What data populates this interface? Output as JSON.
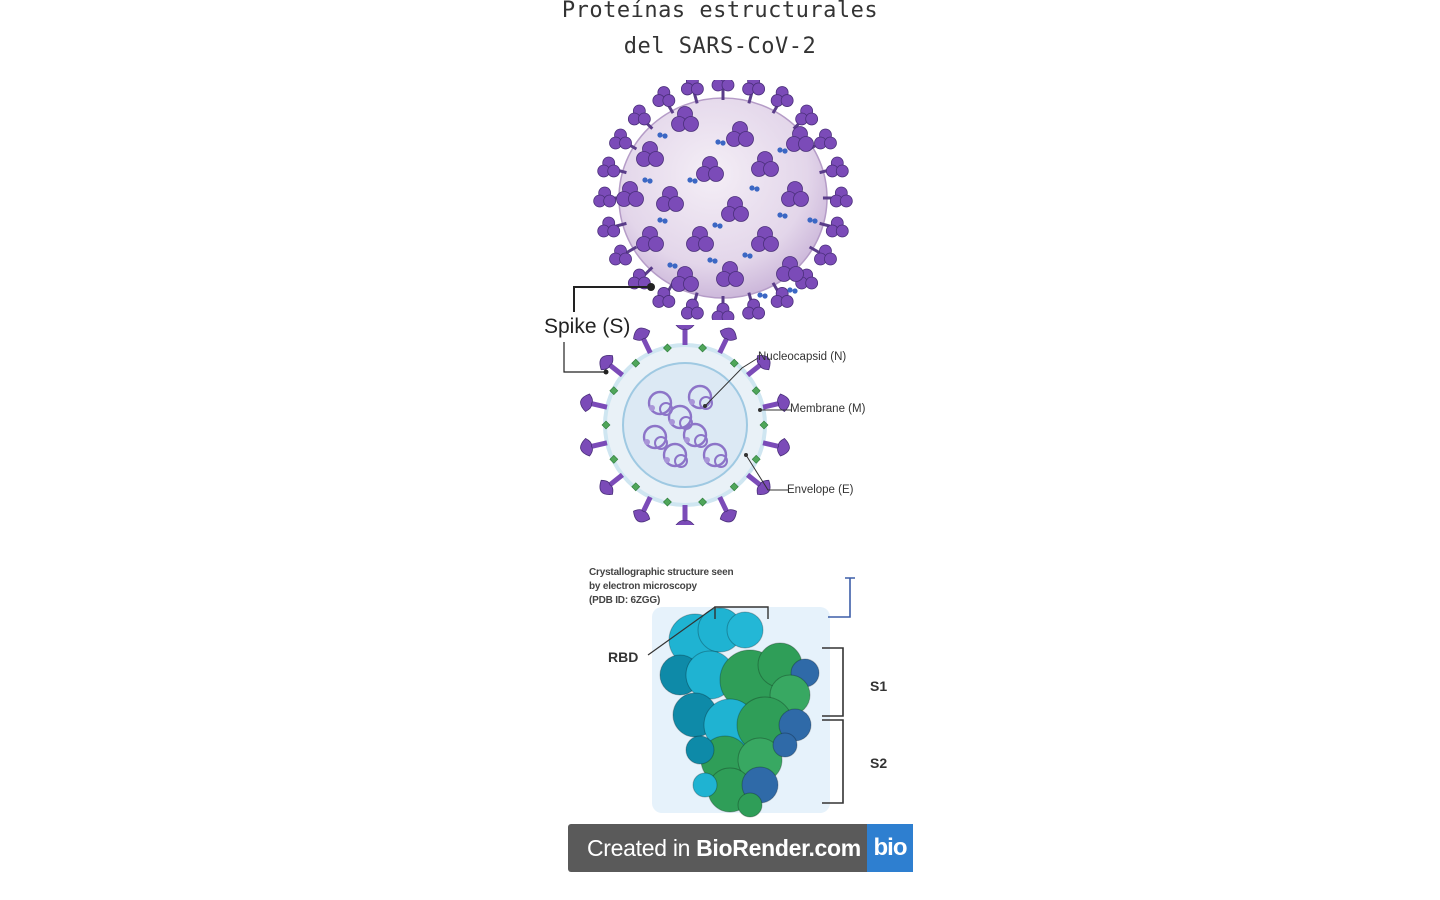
{
  "title": {
    "line1": "Proteínas estructurales",
    "line2": "del SARS-CoV-2"
  },
  "labels": {
    "spike": "Spike (S)",
    "nucleocapsid": "Nucleocapsid (N)",
    "membrane": "Membrane (M)",
    "envelope": "Envelope (E)"
  },
  "structure": {
    "caption_line1": "Crystallographic structure seen",
    "caption_line2": "by electron microscopy",
    "caption_line3": "(PDB ID: 6ZGG)",
    "rbd": "RBD",
    "s1": "S1",
    "s2": "S2"
  },
  "badge": {
    "prefix": "Created in",
    "brand": "BioRender.com",
    "logo": "bio"
  },
  "colors": {
    "spike_purple": "#7b4bb8",
    "virion_fill": "#e6dcec",
    "inner_ring": "#cfe6f1",
    "membrane_green": "#4fa65a",
    "cyan": "#23b7d6",
    "green": "#2f9e58",
    "blue": "#2f6aa8",
    "badge_grey": "#5a5a5a",
    "badge_blue": "#2e7fd0"
  }
}
